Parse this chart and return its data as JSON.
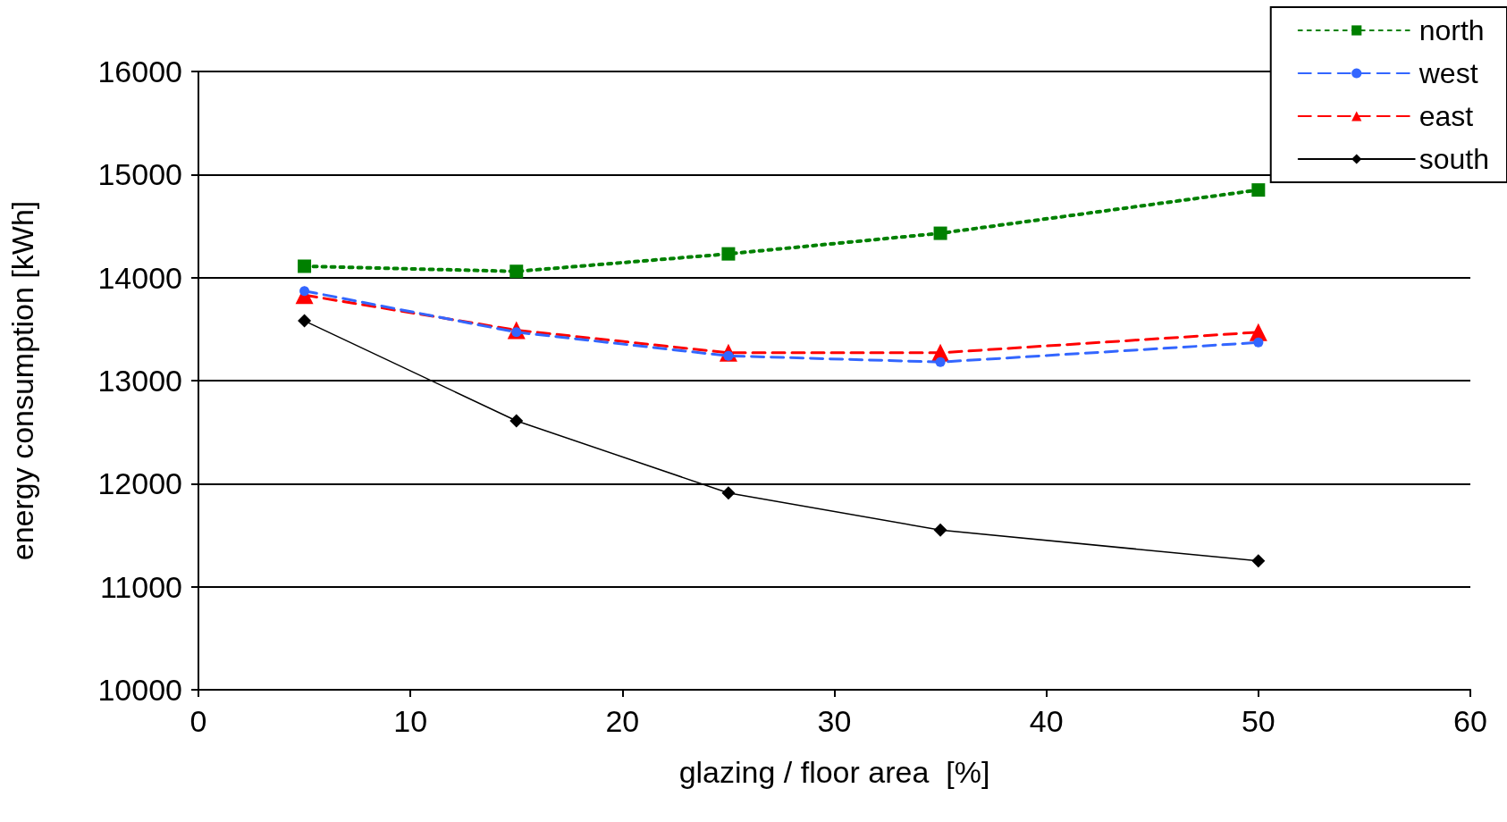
{
  "chart_data": {
    "type": "line",
    "xlabel": "glazing / floor area  [%]",
    "ylabel": "energy consumption [kWh]",
    "x": [
      5,
      15,
      25,
      35,
      50
    ],
    "xlim": [
      0,
      60
    ],
    "xticks": [
      0,
      10,
      20,
      30,
      40,
      50,
      60
    ],
    "ylim": [
      10000,
      16000
    ],
    "yticks": [
      10000,
      11000,
      12000,
      13000,
      14000,
      15000,
      16000
    ],
    "grid": "y",
    "legend": "top right",
    "series": [
      {
        "name": "north",
        "color": "#008000",
        "marker": "square",
        "line_style": "dotted",
        "values": [
          14110,
          14060,
          14230,
          14430,
          14850
        ]
      },
      {
        "name": "west",
        "color": "#3366ff",
        "marker": "circle",
        "line_style": "dashed",
        "values": [
          13870,
          13470,
          13240,
          13180,
          13370
        ]
      },
      {
        "name": "east",
        "color": "#ff0000",
        "marker": "triangle",
        "line_style": "dashed",
        "values": [
          13830,
          13490,
          13270,
          13270,
          13470
        ]
      },
      {
        "name": "south",
        "color": "#000000",
        "marker": "diamond",
        "line_style": "solid",
        "values": [
          13580,
          12610,
          11910,
          11550,
          11250
        ]
      }
    ]
  }
}
